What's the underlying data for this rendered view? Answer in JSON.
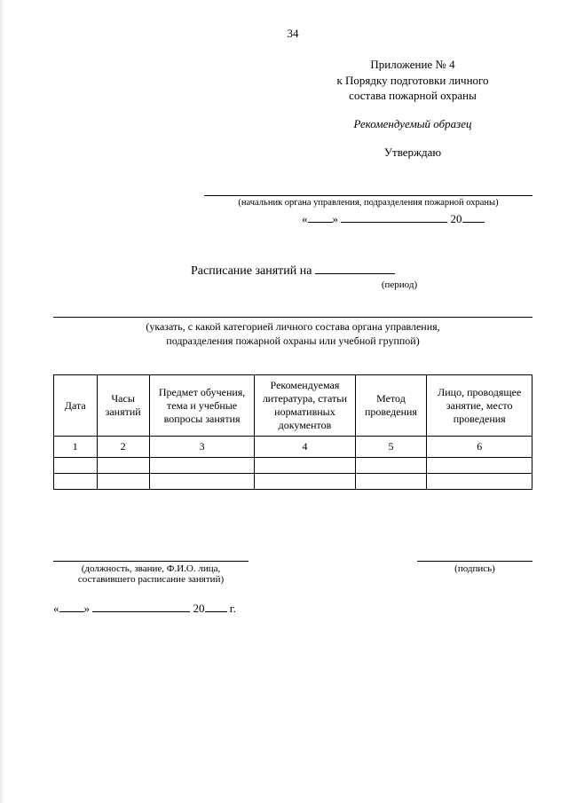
{
  "page_number": "34",
  "header": {
    "line1": "Приложение № 4",
    "line2": "к Порядку подготовки личного",
    "line3": "состава пожарной охраны",
    "sample": "Рекомендуемый образец",
    "approve": "Утверждаю",
    "approver_hint": "(начальник органа управления, подразделения пожарной охраны)",
    "quote_open": "«",
    "quote_close": "»",
    "year_prefix": "20"
  },
  "title": {
    "text": "Расписание занятий на",
    "period_label": "(период)"
  },
  "instruction": {
    "line1": "(указать, с какой категорией личного состава органа управления,",
    "line2": "подразделения пожарной охраны или учебной группой)"
  },
  "table": {
    "columns": [
      "Дата",
      "Часы занятий",
      "Предмет обучения, тема и учебные вопросы занятия",
      "Рекомендуемая литература, статьи нормативных документов",
      "Метод проведения",
      "Лицо, проводящее занятие, место проведения"
    ],
    "numbers": [
      "1",
      "2",
      "3",
      "4",
      "5",
      "6"
    ],
    "col_widths": [
      "9%",
      "11%",
      "22%",
      "21%",
      "15%",
      "22%"
    ]
  },
  "footer": {
    "left_hint1": "(должность, звание, Ф.И.О. лица,",
    "left_hint2": "составившего расписание занятий)",
    "right_hint": "(подпись)",
    "quote_open": "«",
    "quote_close": "»",
    "year_prefix": "20",
    "year_suffix": "г."
  }
}
